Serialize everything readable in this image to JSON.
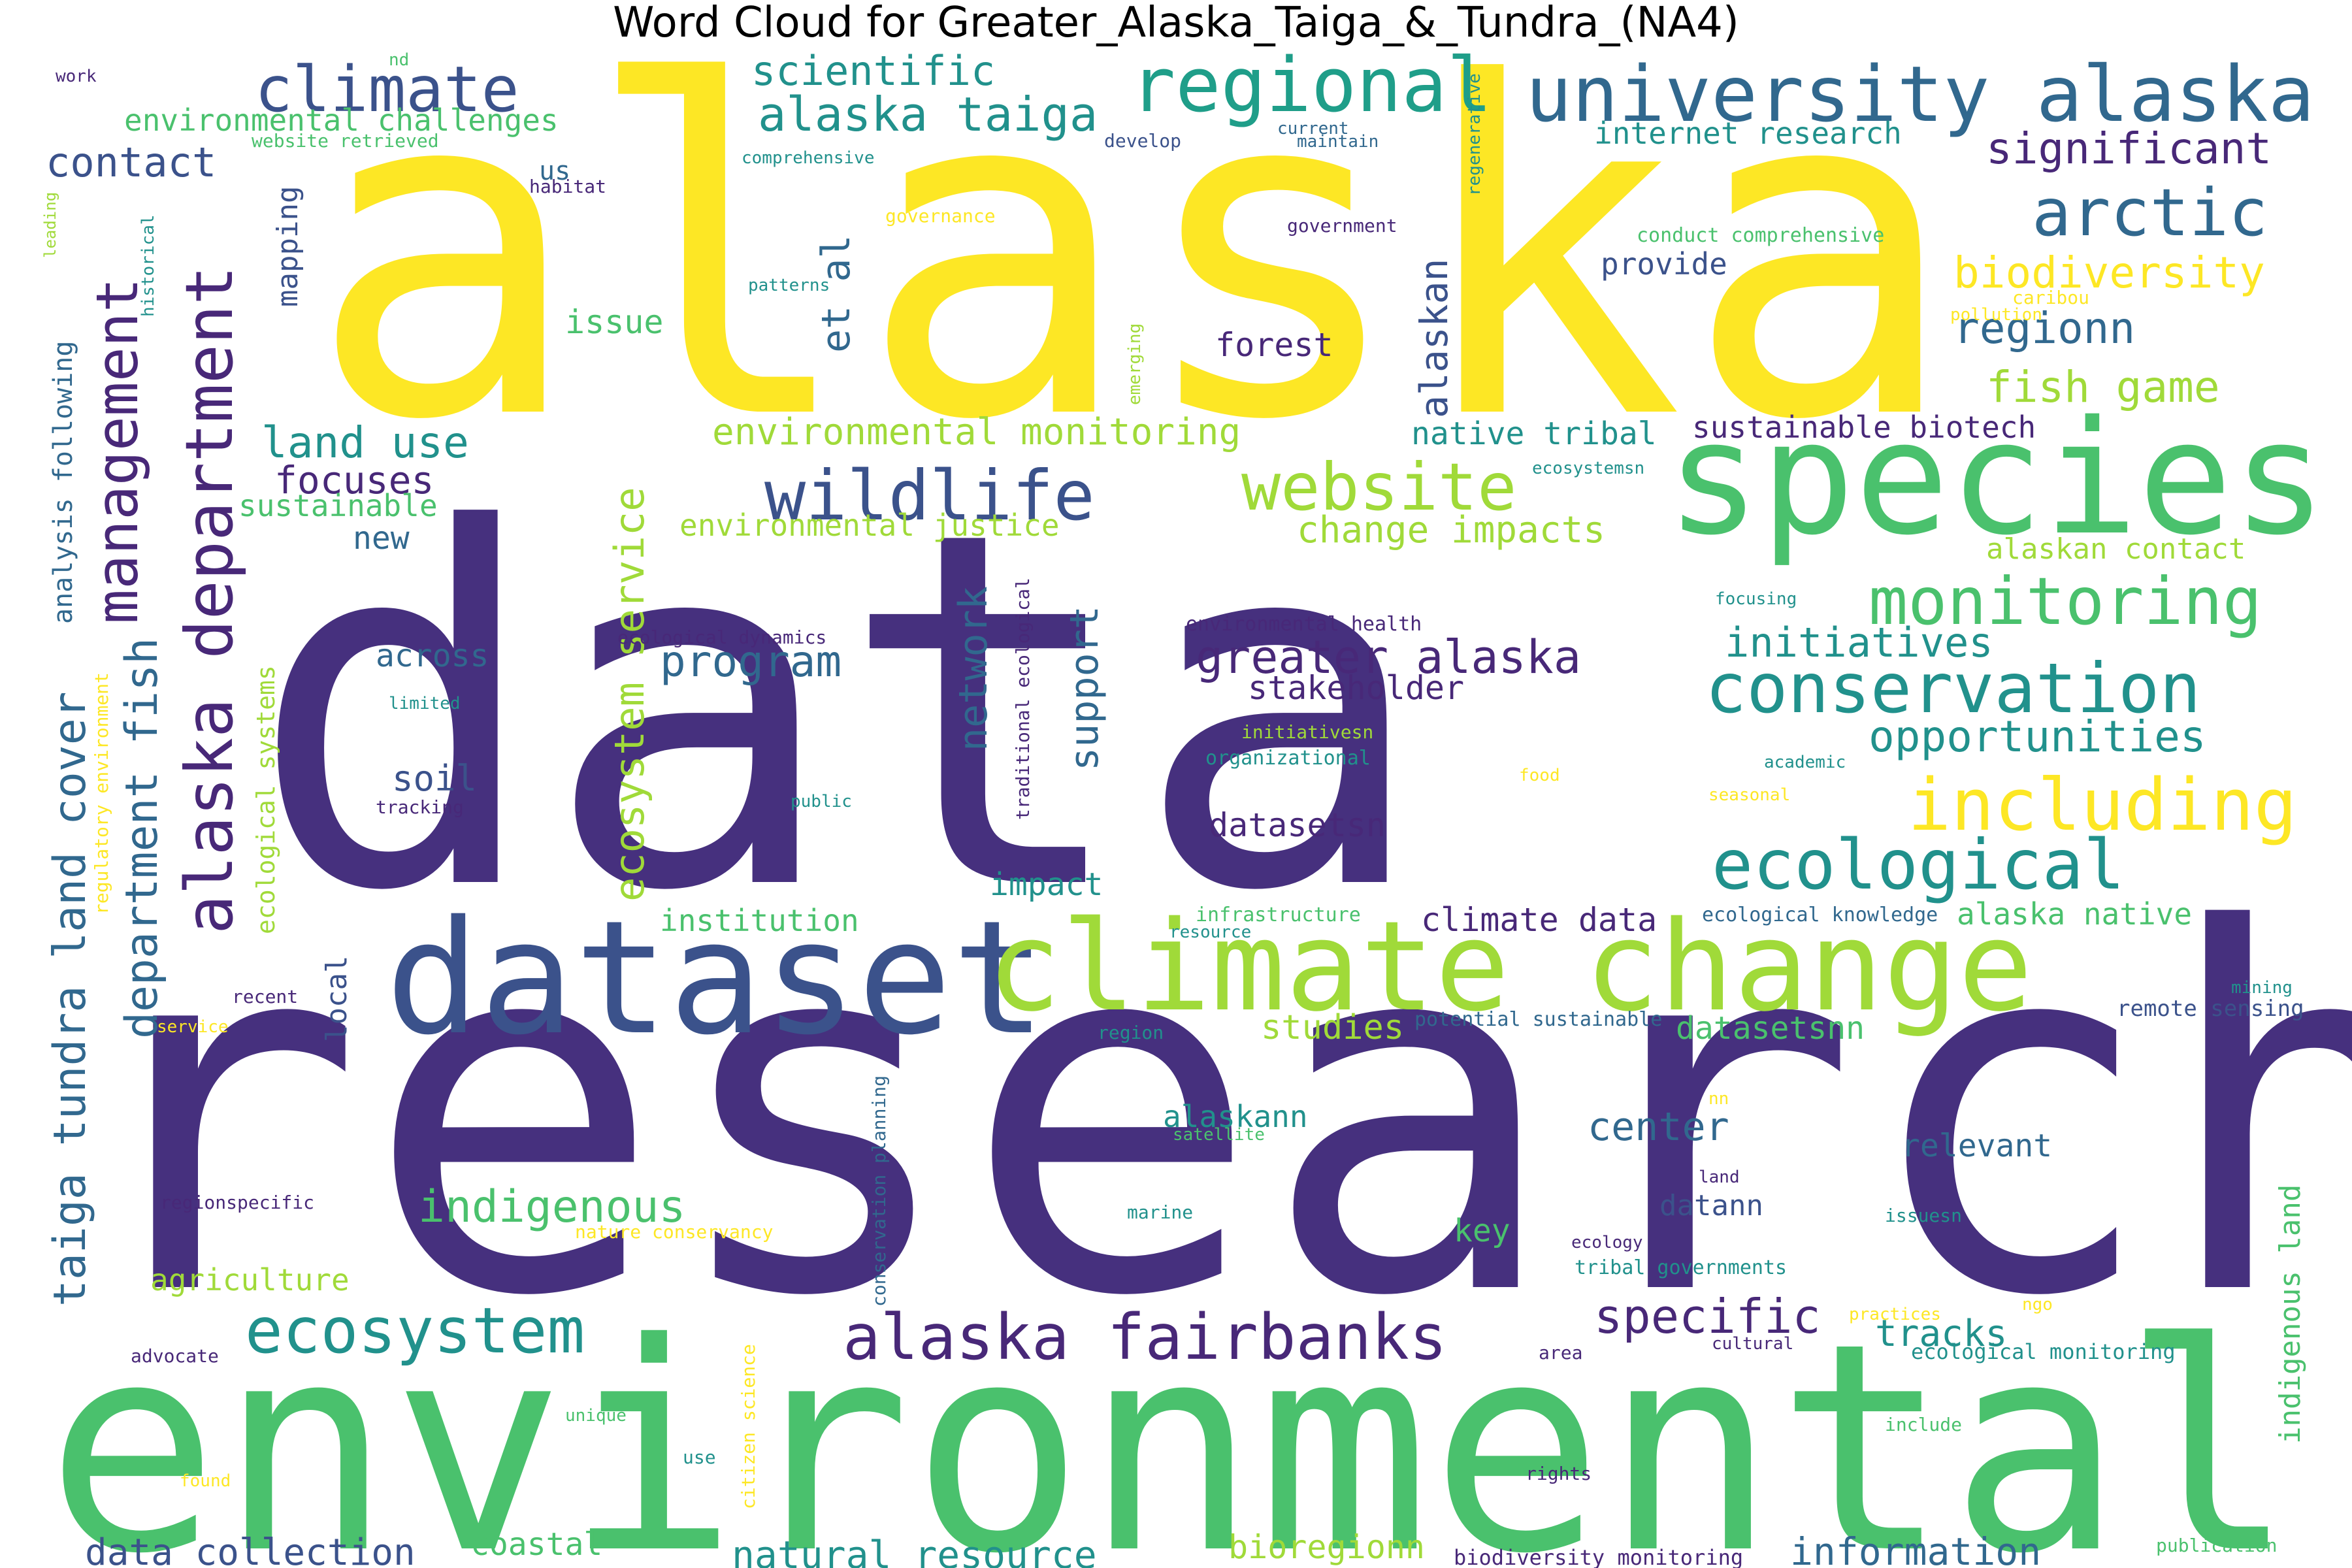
{
  "title": "Word Cloud for Greater_Alaska_Taiga_&_Tundra_(NA4)",
  "colors": {
    "dark_purple": "#46307e",
    "purple": "#482878",
    "slate": "#3b528b",
    "blue": "#31688e",
    "teal": "#21918c",
    "cyan_teal": "#1f9e89",
    "green": "#35b779",
    "mid_green": "#4ac16d",
    "lime": "#a0da39",
    "yellow": "#fde725"
  },
  "words": [
    {
      "text": "alaska",
      "color": "yellow",
      "size": 1.0
    },
    {
      "text": "data",
      "color": "dark_purple",
      "size": 1.0
    },
    {
      "text": "research",
      "color": "dark_purple",
      "size": 0.98
    },
    {
      "text": "environmental",
      "color": "mid_green",
      "size": 0.72
    },
    {
      "text": "species",
      "color": "mid_green",
      "size": 0.42
    },
    {
      "text": "dataset",
      "color": "slate",
      "size": 0.42
    },
    {
      "text": "climate change",
      "color": "lime",
      "size": 0.36
    },
    {
      "text": "university alaska",
      "color": "blue",
      "size": 0.2
    },
    {
      "text": "alaska department",
      "color": "purple",
      "size": 0.18
    },
    {
      "text": "wildlife",
      "color": "slate",
      "size": 0.18
    },
    {
      "text": "regional",
      "color": "cyan_teal",
      "size": 0.19
    },
    {
      "text": "conservation",
      "color": "teal",
      "size": 0.18
    },
    {
      "text": "ecological",
      "color": "teal",
      "size": 0.18
    },
    {
      "text": "including",
      "color": "yellow",
      "size": 0.18
    },
    {
      "text": "alaska fairbanks",
      "color": "purple",
      "size": 0.16
    },
    {
      "text": "ecosystem",
      "color": "teal",
      "size": 0.16
    },
    {
      "text": "management",
      "color": "purple",
      "size": 0.16
    },
    {
      "text": "climate",
      "color": "slate",
      "size": 0.16
    },
    {
      "text": "website",
      "color": "lime",
      "size": 0.16
    },
    {
      "text": "monitoring",
      "color": "mid_green",
      "size": 0.16
    },
    {
      "text": "arctic",
      "color": "blue",
      "size": 0.16
    },
    {
      "text": "taiga tundra land cover",
      "color": "blue",
      "size": 0.14
    },
    {
      "text": "department fish",
      "color": "blue",
      "size": 0.14
    },
    {
      "text": "alaska taiga",
      "color": "teal",
      "size": 0.12
    },
    {
      "text": "significant",
      "color": "purple",
      "size": 0.12
    },
    {
      "text": "greater alaska",
      "color": "purple",
      "size": 0.12
    },
    {
      "text": "indigenous",
      "color": "mid_green",
      "size": 0.12
    },
    {
      "text": "specific",
      "color": "purple",
      "size": 0.12
    },
    {
      "text": "biodiversity",
      "color": "yellow",
      "size": 0.12
    },
    {
      "text": "opportunities",
      "color": "teal",
      "size": 0.12
    },
    {
      "text": "ecosystem service",
      "color": "lime",
      "size": 0.12
    },
    {
      "text": "regionn",
      "color": "blue",
      "size": 0.12
    },
    {
      "text": "fish game",
      "color": "lime",
      "size": 0.12
    },
    {
      "text": "initiatives",
      "color": "teal",
      "size": 0.11
    },
    {
      "text": "program",
      "color": "blue",
      "size": 0.11
    },
    {
      "text": "scientific",
      "color": "teal",
      "size": 0.11
    },
    {
      "text": "land use",
      "color": "teal",
      "size": 0.11
    },
    {
      "text": "network",
      "color": "blue",
      "size": 0.11
    },
    {
      "text": "support",
      "color": "blue",
      "size": 0.11
    },
    {
      "text": "contact",
      "color": "slate",
      "size": 0.11
    },
    {
      "text": "et al",
      "color": "blue",
      "size": 0.11
    },
    {
      "text": "alaskan",
      "color": "slate",
      "size": 0.11
    },
    {
      "text": "environmental monitoring",
      "color": "lime",
      "size": 0.1
    },
    {
      "text": "change impacts",
      "color": "lime",
      "size": 0.1
    },
    {
      "text": "focuses",
      "color": "purple",
      "size": 0.1
    },
    {
      "text": "natural resource",
      "color": "teal",
      "size": 0.1
    },
    {
      "text": "information",
      "color": "blue",
      "size": 0.1
    },
    {
      "text": "data collection",
      "color": "slate",
      "size": 0.1
    },
    {
      "text": "tracks",
      "color": "teal",
      "size": 0.1
    },
    {
      "text": "center",
      "color": "blue",
      "size": 0.1
    },
    {
      "text": "environmental challenges",
      "color": "mid_green",
      "size": 0.08
    },
    {
      "text": "environmental justice",
      "color": "lime",
      "size": 0.08
    },
    {
      "text": "issue",
      "color": "mid_green",
      "size": 0.08
    },
    {
      "text": "forest",
      "color": "purple",
      "size": 0.08
    },
    {
      "text": "provide",
      "color": "slate",
      "size": 0.08
    },
    {
      "text": "mapping",
      "color": "slate",
      "size": 0.08
    },
    {
      "text": "native tribal",
      "color": "teal",
      "size": 0.08
    },
    {
      "text": "sustainable biotech",
      "color": "purple",
      "size": 0.08
    },
    {
      "text": "alaskan contact",
      "color": "lime",
      "size": 0.08
    },
    {
      "text": "internet research",
      "color": "teal",
      "size": 0.08
    },
    {
      "text": "sustainable",
      "color": "mid_green",
      "size": 0.08
    },
    {
      "text": "new",
      "color": "blue",
      "size": 0.08
    },
    {
      "text": "stakeholder",
      "color": "purple",
      "size": 0.08
    },
    {
      "text": "across",
      "color": "blue",
      "size": 0.08
    },
    {
      "text": "soil",
      "color": "slate",
      "size": 0.08
    },
    {
      "text": "datasetsn",
      "color": "purple",
      "size": 0.08
    },
    {
      "text": "impact",
      "color": "teal",
      "size": 0.08
    },
    {
      "text": "institution",
      "color": "mid_green",
      "size": 0.08
    },
    {
      "text": "climate data",
      "color": "purple",
      "size": 0.08
    },
    {
      "text": "alaska native",
      "color": "mid_green",
      "size": 0.08
    },
    {
      "text": "studies",
      "color": "lime",
      "size": 0.08
    },
    {
      "text": "datasetsnn",
      "color": "mid_green",
      "size": 0.08
    },
    {
      "text": "alaskann",
      "color": "teal",
      "size": 0.08
    },
    {
      "text": "relevant",
      "color": "blue",
      "size": 0.08
    },
    {
      "text": "datann",
      "color": "slate",
      "size": 0.08
    },
    {
      "text": "key",
      "color": "mid_green",
      "size": 0.08
    },
    {
      "text": "agriculture",
      "color": "lime",
      "size": 0.08
    },
    {
      "text": "coastal",
      "color": "mid_green",
      "size": 0.08
    },
    {
      "text": "bioregionn",
      "color": "lime",
      "size": 0.08
    },
    {
      "text": "local",
      "color": "slate",
      "size": 0.08
    },
    {
      "text": "indigenous land",
      "color": "mid_green",
      "size": 0.08
    },
    {
      "text": "analysis following",
      "color": "blue",
      "size": 0.07
    },
    {
      "text": "ecological systems",
      "color": "lime",
      "size": 0.07
    },
    {
      "text": "remote sensing",
      "color": "slate",
      "size": 0.06
    },
    {
      "text": "conservation planning",
      "color": "blue",
      "size": 0.05
    },
    {
      "text": "citizen science",
      "color": "yellow",
      "size": 0.05
    },
    {
      "text": "traditional ecological",
      "color": "purple",
      "size": 0.05
    },
    {
      "text": "regulatory environment",
      "color": "yellow",
      "size": 0.05
    },
    {
      "text": "biodiversity monitoring",
      "color": "purple",
      "size": 0.05
    },
    {
      "text": "ecological monitoring",
      "color": "teal",
      "size": 0.05
    },
    {
      "text": "tribal governments",
      "color": "teal",
      "size": 0.05
    },
    {
      "text": "ecological knowledge",
      "color": "blue",
      "size": 0.05
    },
    {
      "text": "potential sustainable",
      "color": "blue",
      "size": 0.05
    },
    {
      "text": "environmental health",
      "color": "purple",
      "size": 0.05
    },
    {
      "text": "ecological dynamics",
      "color": "purple",
      "size": 0.05
    },
    {
      "text": "conduct comprehensive",
      "color": "mid_green",
      "size": 0.05
    },
    {
      "text": "nature conservancy",
      "color": "yellow",
      "size": 0.05
    },
    {
      "text": "website retrieved",
      "color": "mid_green",
      "size": 0.05
    },
    {
      "text": "infrastructure",
      "color": "mid_green",
      "size": 0.05
    },
    {
      "text": "organizational",
      "color": "teal",
      "size": 0.05
    },
    {
      "text": "regionspecific",
      "color": "purple",
      "size": 0.05
    },
    {
      "text": "regenerative",
      "color": "teal",
      "size": 0.05
    },
    {
      "text": "comprehensive",
      "color": "teal",
      "size": 0.045
    },
    {
      "text": "government",
      "color": "purple",
      "size": 0.045
    },
    {
      "text": "governance",
      "color": "yellow",
      "size": 0.045
    },
    {
      "text": "initiativesn",
      "color": "lime",
      "size": 0.045
    },
    {
      "text": "ecosystemsn",
      "color": "teal",
      "size": 0.045
    },
    {
      "text": "historical",
      "color": "teal",
      "size": 0.045
    },
    {
      "text": "emerging",
      "color": "lime",
      "size": 0.045
    },
    {
      "text": "habitat",
      "color": "purple",
      "size": 0.045
    },
    {
      "text": "patterns",
      "color": "teal",
      "size": 0.045
    },
    {
      "text": "develop",
      "color": "slate",
      "size": 0.045
    },
    {
      "text": "current",
      "color": "blue",
      "size": 0.045
    },
    {
      "text": "maintain",
      "color": "blue",
      "size": 0.045
    },
    {
      "text": "caribou",
      "color": "yellow",
      "size": 0.045
    },
    {
      "text": "pollution",
      "color": "yellow",
      "size": 0.045
    },
    {
      "text": "focusing",
      "color": "teal",
      "size": 0.045
    },
    {
      "text": "academic",
      "color": "teal",
      "size": 0.045
    },
    {
      "text": "seasonal",
      "color": "yellow",
      "size": 0.045
    },
    {
      "text": "limited",
      "color": "teal",
      "size": 0.045
    },
    {
      "text": "tracking",
      "color": "purple",
      "size": 0.045
    },
    {
      "text": "public",
      "color": "teal",
      "size": 0.045
    },
    {
      "text": "food",
      "color": "yellow",
      "size": 0.045
    },
    {
      "text": "resource",
      "color": "teal",
      "size": 0.045
    },
    {
      "text": "recent",
      "color": "purple",
      "size": 0.045
    },
    {
      "text": "service",
      "color": "yellow",
      "size": 0.045
    },
    {
      "text": "region",
      "color": "teal",
      "size": 0.045
    },
    {
      "text": "satellite",
      "color": "mid_green",
      "size": 0.045
    },
    {
      "text": "marine",
      "color": "teal",
      "size": 0.045
    },
    {
      "text": "ecology",
      "color": "purple",
      "size": 0.045
    },
    {
      "text": "land",
      "color": "purple",
      "size": 0.045
    },
    {
      "text": "issuesn",
      "color": "teal",
      "size": 0.045
    },
    {
      "text": "mining",
      "color": "teal",
      "size": 0.045
    },
    {
      "text": "nn",
      "color": "yellow",
      "size": 0.045
    },
    {
      "text": "ngo",
      "color": "yellow",
      "size": 0.045
    },
    {
      "text": "practices",
      "color": "yellow",
      "size": 0.045
    },
    {
      "text": "cultural",
      "color": "purple",
      "size": 0.045
    },
    {
      "text": "area",
      "color": "purple",
      "size": 0.045
    },
    {
      "text": "advocate",
      "color": "purple",
      "size": 0.045
    },
    {
      "text": "unique",
      "color": "mid_green",
      "size": 0.045
    },
    {
      "text": "use",
      "color": "teal",
      "size": 0.045
    },
    {
      "text": "found",
      "color": "yellow",
      "size": 0.045
    },
    {
      "text": "rights",
      "color": "purple",
      "size": 0.045
    },
    {
      "text": "include",
      "color": "mid_green",
      "size": 0.045
    },
    {
      "text": "publication",
      "color": "mid_green",
      "size": 0.045
    },
    {
      "text": "us",
      "color": "blue",
      "size": 0.06
    },
    {
      "text": "nd",
      "color": "mid_green",
      "size": 0.045
    },
    {
      "text": "work",
      "color": "purple",
      "size": 0.045
    },
    {
      "text": "leading",
      "color": "lime",
      "size": 0.045
    }
  ]
}
